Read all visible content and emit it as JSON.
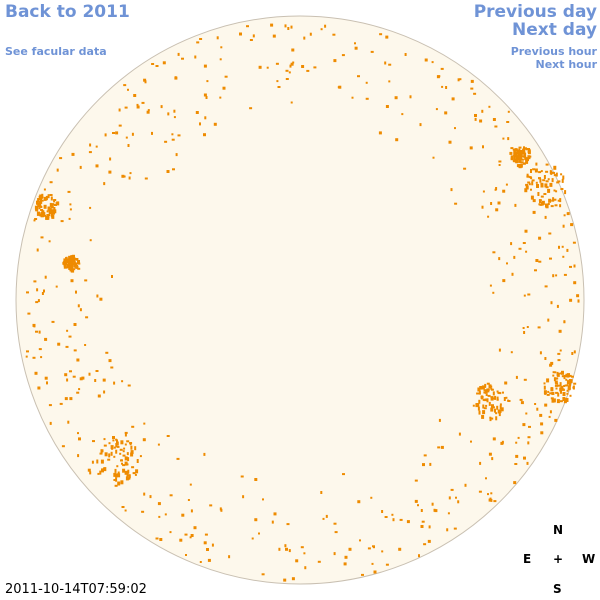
{
  "nav": {
    "back_year": "Back to 2011",
    "see_facular": "See facular data",
    "previous_day": "Previous day",
    "next_day": "Next day",
    "previous_hour": "Previous hour",
    "next_hour": "Next hour"
  },
  "timestamp": "2011-10-14T07:59:02",
  "compass": {
    "north": "N",
    "south": "S",
    "east": "E",
    "west": "W",
    "center": "+"
  },
  "colors": {
    "disk_fill": "#fdf8ec",
    "disk_edge": "#c9c0b2",
    "facula": "#ee8b00",
    "link": "#6f93d6"
  }
}
